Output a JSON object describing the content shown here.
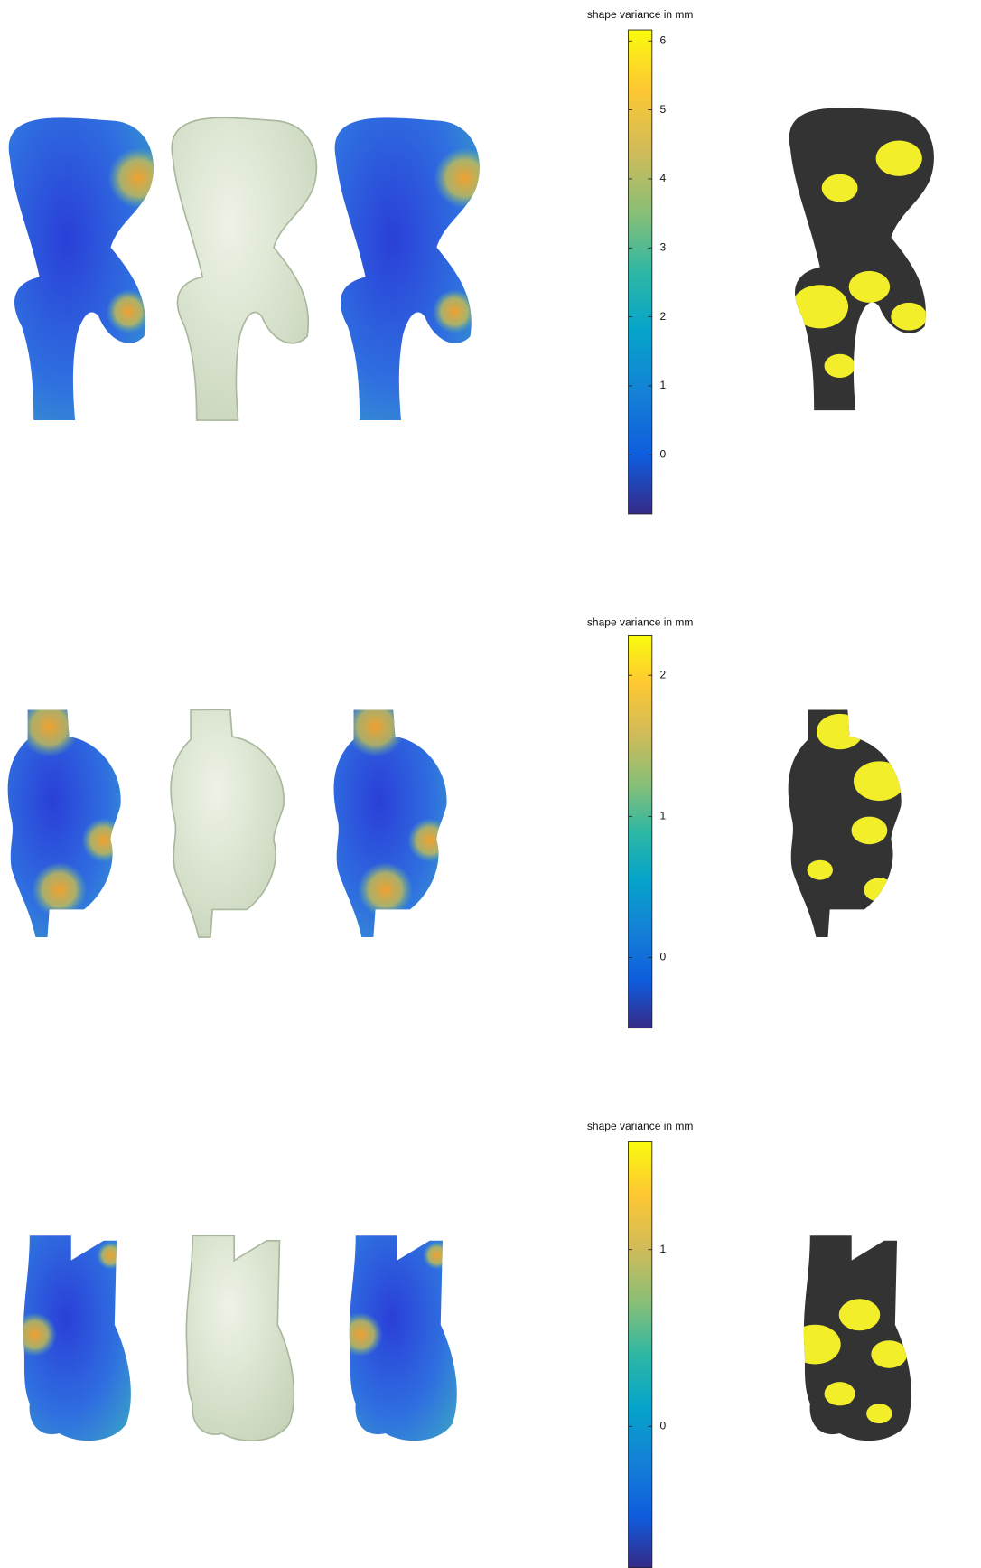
{
  "panels": [
    {
      "colorbar": {
        "label": "shape variance in mm",
        "ylim": [
          -0.86,
          6.16
        ],
        "yticks": [
          0,
          1,
          2,
          3,
          4,
          5,
          6
        ]
      }
    },
    {
      "colorbar": {
        "label": "shape variance in mm",
        "ylim": [
          -0.5,
          2.28
        ],
        "yticks": [
          0,
          1,
          2
        ]
      }
    },
    {
      "colorbar": {
        "label": "shape variance in mm",
        "ylim": [
          -0.8,
          1.61
        ],
        "yticks": [
          0,
          1
        ]
      }
    }
  ]
}
